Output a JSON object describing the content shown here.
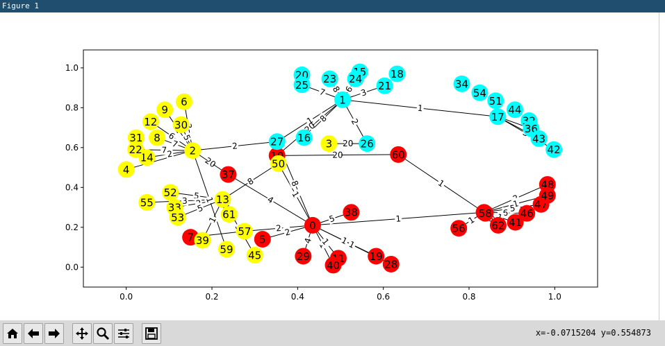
{
  "window": {
    "title": "Figure 1"
  },
  "status": {
    "coords": "x=-0.0715204  y=0.554873"
  },
  "toolbar": {
    "buttons": [
      {
        "name": "home-icon"
      },
      {
        "name": "back-icon"
      },
      {
        "name": "forward-icon"
      },
      {
        "name": "pan-icon"
      },
      {
        "name": "zoom-icon"
      },
      {
        "name": "configure-subplots-icon"
      },
      {
        "name": "save-icon"
      }
    ]
  },
  "chart_data": {
    "type": "scatter",
    "xlim": [
      -0.1,
      1.1
    ],
    "ylim": [
      -0.1,
      1.09
    ],
    "xticks": [
      "0.0",
      "0.2",
      "0.4",
      "0.6",
      "0.8",
      "1.0"
    ],
    "yticks": [
      "0.0",
      "0.2",
      "0.4",
      "0.6",
      "0.8",
      "1.0"
    ],
    "grid": false,
    "colors": {
      "yellow": "#ffff00",
      "cyan": "#00ffff",
      "red": "#ff0000"
    },
    "nodes": [
      {
        "id": "0",
        "x": 0.435,
        "y": 0.21,
        "c": "red"
      },
      {
        "id": "1",
        "x": 0.505,
        "y": 0.84,
        "c": "cyan"
      },
      {
        "id": "2",
        "x": 0.155,
        "y": 0.585,
        "c": "yellow"
      },
      {
        "id": "3",
        "x": 0.473,
        "y": 0.62,
        "c": "yellow"
      },
      {
        "id": "4",
        "x": 0.0,
        "y": 0.49,
        "c": "yellow"
      },
      {
        "id": "5",
        "x": 0.318,
        "y": 0.14,
        "c": "red"
      },
      {
        "id": "6",
        "x": 0.135,
        "y": 0.83,
        "c": "yellow"
      },
      {
        "id": "7",
        "x": 0.15,
        "y": 0.15,
        "c": "red"
      },
      {
        "id": "8",
        "x": 0.072,
        "y": 0.65,
        "c": "yellow"
      },
      {
        "id": "9",
        "x": 0.09,
        "y": 0.79,
        "c": "yellow"
      },
      {
        "id": "10",
        "x": 0.352,
        "y": 0.56,
        "c": "red"
      },
      {
        "id": "11",
        "x": 0.495,
        "y": 0.045,
        "c": "red"
      },
      {
        "id": "12",
        "x": 0.057,
        "y": 0.73,
        "c": "yellow"
      },
      {
        "id": "13",
        "x": 0.225,
        "y": 0.34,
        "c": "yellow"
      },
      {
        "id": "14",
        "x": 0.048,
        "y": 0.55,
        "c": "yellow"
      },
      {
        "id": "15",
        "x": 0.545,
        "y": 0.98,
        "c": "cyan"
      },
      {
        "id": "16",
        "x": 0.415,
        "y": 0.65,
        "c": "cyan"
      },
      {
        "id": "17",
        "x": 0.867,
        "y": 0.755,
        "c": "cyan"
      },
      {
        "id": "18",
        "x": 0.632,
        "y": 0.97,
        "c": "cyan"
      },
      {
        "id": "19",
        "x": 0.583,
        "y": 0.055,
        "c": "red"
      },
      {
        "id": "20",
        "x": 0.41,
        "y": 0.965,
        "c": "cyan"
      },
      {
        "id": "21",
        "x": 0.603,
        "y": 0.91,
        "c": "cyan"
      },
      {
        "id": "22",
        "x": 0.022,
        "y": 0.59,
        "c": "yellow"
      },
      {
        "id": "23",
        "x": 0.475,
        "y": 0.945,
        "c": "cyan"
      },
      {
        "id": "24",
        "x": 0.535,
        "y": 0.945,
        "c": "cyan"
      },
      {
        "id": "25",
        "x": 0.41,
        "y": 0.915,
        "c": "cyan"
      },
      {
        "id": "26",
        "x": 0.562,
        "y": 0.62,
        "c": "cyan"
      },
      {
        "id": "27",
        "x": 0.352,
        "y": 0.63,
        "c": "cyan"
      },
      {
        "id": "28",
        "x": 0.618,
        "y": 0.015,
        "c": "red"
      },
      {
        "id": "29",
        "x": 0.413,
        "y": 0.055,
        "c": "red"
      },
      {
        "id": "30",
        "x": 0.128,
        "y": 0.715,
        "c": "yellow"
      },
      {
        "id": "31",
        "x": 0.023,
        "y": 0.65,
        "c": "yellow"
      },
      {
        "id": "32",
        "x": 0.94,
        "y": 0.735,
        "c": "cyan"
      },
      {
        "id": "33",
        "x": 0.113,
        "y": 0.3,
        "c": "yellow"
      },
      {
        "id": "34",
        "x": 0.783,
        "y": 0.92,
        "c": "cyan"
      },
      {
        "id": "35",
        "x": 0.835,
        "y": 0.275,
        "c": "red"
      },
      {
        "id": "36",
        "x": 0.945,
        "y": 0.695,
        "c": "cyan"
      },
      {
        "id": "37",
        "x": 0.238,
        "y": 0.465,
        "c": "red"
      },
      {
        "id": "38",
        "x": 0.525,
        "y": 0.275,
        "c": "red"
      },
      {
        "id": "39",
        "x": 0.178,
        "y": 0.135,
        "c": "yellow"
      },
      {
        "id": "40",
        "x": 0.483,
        "y": 0.01,
        "c": "red"
      },
      {
        "id": "41",
        "x": 0.908,
        "y": 0.225,
        "c": "red"
      },
      {
        "id": "42",
        "x": 0.998,
        "y": 0.59,
        "c": "cyan"
      },
      {
        "id": "43",
        "x": 0.963,
        "y": 0.645,
        "c": "cyan"
      },
      {
        "id": "44",
        "x": 0.907,
        "y": 0.79,
        "c": "cyan"
      },
      {
        "id": "45",
        "x": 0.3,
        "y": 0.06,
        "c": "yellow"
      },
      {
        "id": "46",
        "x": 0.935,
        "y": 0.27,
        "c": "red"
      },
      {
        "id": "47",
        "x": 0.968,
        "y": 0.315,
        "c": "red"
      },
      {
        "id": "48",
        "x": 0.983,
        "y": 0.415,
        "c": "red"
      },
      {
        "id": "49",
        "x": 0.983,
        "y": 0.36,
        "c": "red"
      },
      {
        "id": "50",
        "x": 0.355,
        "y": 0.52,
        "c": "yellow"
      },
      {
        "id": "51",
        "x": 0.862,
        "y": 0.835,
        "c": "cyan"
      },
      {
        "id": "52",
        "x": 0.103,
        "y": 0.375,
        "c": "yellow"
      },
      {
        "id": "53",
        "x": 0.12,
        "y": 0.25,
        "c": "yellow"
      },
      {
        "id": "54",
        "x": 0.825,
        "y": 0.875,
        "c": "cyan"
      },
      {
        "id": "55",
        "x": 0.048,
        "y": 0.325,
        "c": "yellow"
      },
      {
        "id": "56",
        "x": 0.776,
        "y": 0.195,
        "c": "red"
      },
      {
        "id": "57",
        "x": 0.276,
        "y": 0.18,
        "c": "yellow"
      },
      {
        "id": "58",
        "x": 0.838,
        "y": 0.27,
        "c": "red"
      },
      {
        "id": "59",
        "x": 0.234,
        "y": 0.09,
        "c": "yellow"
      },
      {
        "id": "60",
        "x": 0.635,
        "y": 0.565,
        "c": "red"
      },
      {
        "id": "61",
        "x": 0.24,
        "y": 0.265,
        "c": "yellow"
      },
      {
        "id": "62",
        "x": 0.868,
        "y": 0.21,
        "c": "red"
      }
    ],
    "edges": [
      {
        "a": "0",
        "b": "50",
        "label": "1"
      },
      {
        "a": "0",
        "b": "27",
        "label": "8"
      },
      {
        "a": "0",
        "b": "35",
        "label": "1"
      },
      {
        "a": "0",
        "b": "57",
        "label": "2"
      },
      {
        "a": "0",
        "b": "5",
        "label": "2"
      },
      {
        "a": "0",
        "b": "29",
        "label": "4"
      },
      {
        "a": "0",
        "b": "40",
        "label": "1"
      },
      {
        "a": "0",
        "b": "11",
        "label": "1"
      },
      {
        "a": "0",
        "b": "38",
        "label": "5"
      },
      {
        "a": "0",
        "b": "19",
        "label": "1"
      },
      {
        "a": "0",
        "b": "28",
        "label": "1"
      },
      {
        "a": "0",
        "b": "37",
        "label": "4"
      },
      {
        "a": "1",
        "b": "17",
        "label": "1"
      },
      {
        "a": "1",
        "b": "26",
        "label": "2"
      },
      {
        "a": "1",
        "b": "27",
        "label": "1"
      },
      {
        "a": "1",
        "b": "16",
        "label": "8"
      },
      {
        "a": "1",
        "b": "25",
        "label": "7"
      },
      {
        "a": "1",
        "b": "23",
        "label": "8"
      },
      {
        "a": "1",
        "b": "21",
        "label": "3"
      },
      {
        "a": "1",
        "b": "24",
        "label": "6"
      },
      {
        "a": "1",
        "b": "10",
        "label": "20"
      },
      {
        "a": "2",
        "b": "27",
        "label": "2"
      },
      {
        "a": "2",
        "b": "37",
        "label": "20"
      },
      {
        "a": "2",
        "b": "59",
        "label": "1"
      },
      {
        "a": "2",
        "b": "6",
        "label": "3"
      },
      {
        "a": "2",
        "b": "30",
        "label": "5"
      },
      {
        "a": "2",
        "b": "9",
        "label": "2"
      },
      {
        "a": "2",
        "b": "12",
        "label": "6"
      },
      {
        "a": "2",
        "b": "8",
        "label": "7"
      },
      {
        "a": "2",
        "b": "22",
        "label": "7"
      },
      {
        "a": "2",
        "b": "14",
        "label": "2"
      },
      {
        "a": "2",
        "b": "4",
        "label": ""
      },
      {
        "a": "3",
        "b": "26",
        "label": "20"
      },
      {
        "a": "10",
        "b": "60",
        "label": "20"
      },
      {
        "a": "60",
        "b": "35",
        "label": "1"
      },
      {
        "a": "13",
        "b": "52",
        "label": "5"
      },
      {
        "a": "13",
        "b": "33",
        "label": "2"
      },
      {
        "a": "13",
        "b": "53",
        "label": "5"
      },
      {
        "a": "13",
        "b": "55",
        "label": "3"
      },
      {
        "a": "13",
        "b": "39",
        "label": "1"
      },
      {
        "a": "13",
        "b": "61",
        "label": "1"
      },
      {
        "a": "13",
        "b": "45",
        "label": "5"
      },
      {
        "a": "13",
        "b": "50",
        "label": "8"
      },
      {
        "a": "7",
        "b": "57",
        "label": ""
      },
      {
        "a": "35",
        "b": "48",
        "label": "2"
      },
      {
        "a": "35",
        "b": "49",
        "label": "1"
      },
      {
        "a": "35",
        "b": "47",
        "label": "5"
      },
      {
        "a": "35",
        "b": "46",
        "label": "6"
      },
      {
        "a": "35",
        "b": "41",
        "label": "1"
      },
      {
        "a": "35",
        "b": "62",
        "label": "6"
      },
      {
        "a": "35",
        "b": "58",
        "label": ""
      },
      {
        "a": "35",
        "b": "56",
        "label": "1"
      },
      {
        "a": "17",
        "b": "42",
        "label": "3"
      },
      {
        "a": "17",
        "b": "43",
        "label": ""
      },
      {
        "a": "17",
        "b": "36",
        "label": ""
      }
    ]
  }
}
